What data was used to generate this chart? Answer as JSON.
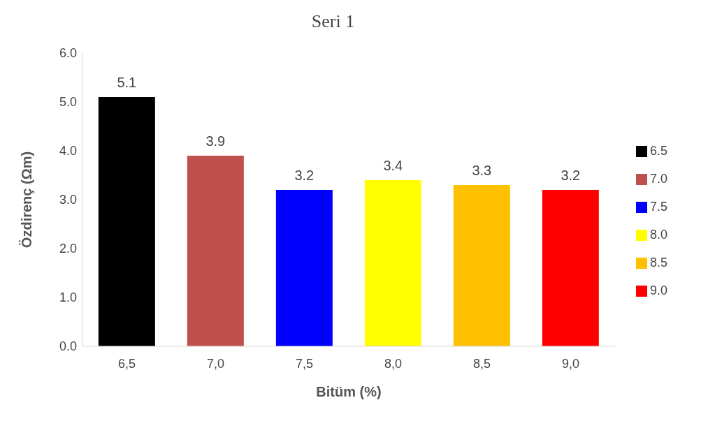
{
  "chart_data": {
    "type": "bar",
    "title": "Seri 1",
    "xlabel": "Bitüm (%)",
    "ylabel": "Özdirenç  (Ωm)",
    "categories": [
      "6,5",
      "7,0",
      "7,5",
      "8,0",
      "8,5",
      "9,0"
    ],
    "series": [
      {
        "name": "6.5",
        "color": "#000000",
        "values": [
          5.1,
          null,
          null,
          null,
          null,
          null
        ]
      },
      {
        "name": "7.0",
        "color": "#c0504d",
        "values": [
          null,
          3.9,
          null,
          null,
          null,
          null
        ]
      },
      {
        "name": "7.5",
        "color": "#0000ff",
        "values": [
          null,
          null,
          3.2,
          null,
          null,
          null
        ]
      },
      {
        "name": "8.0",
        "color": "#ffff00",
        "values": [
          null,
          null,
          null,
          3.4,
          null,
          null
        ]
      },
      {
        "name": "8.5",
        "color": "#ffc000",
        "values": [
          null,
          null,
          null,
          null,
          3.3,
          null
        ]
      },
      {
        "name": "9.0",
        "color": "#ff0000",
        "values": [
          null,
          null,
          null,
          null,
          null,
          3.2
        ]
      }
    ],
    "ylim": [
      0,
      6
    ],
    "yticks": [
      {
        "value": 0,
        "label": "0.0"
      },
      {
        "value": 1,
        "label": "1.0"
      },
      {
        "value": 2,
        "label": "2.0"
      },
      {
        "value": 3,
        "label": "3.0"
      },
      {
        "value": 4,
        "label": "4.0"
      },
      {
        "value": 5,
        "label": "5.0"
      },
      {
        "value": 6,
        "label": "6.0"
      }
    ],
    "data_labels": true,
    "legend": "right"
  }
}
